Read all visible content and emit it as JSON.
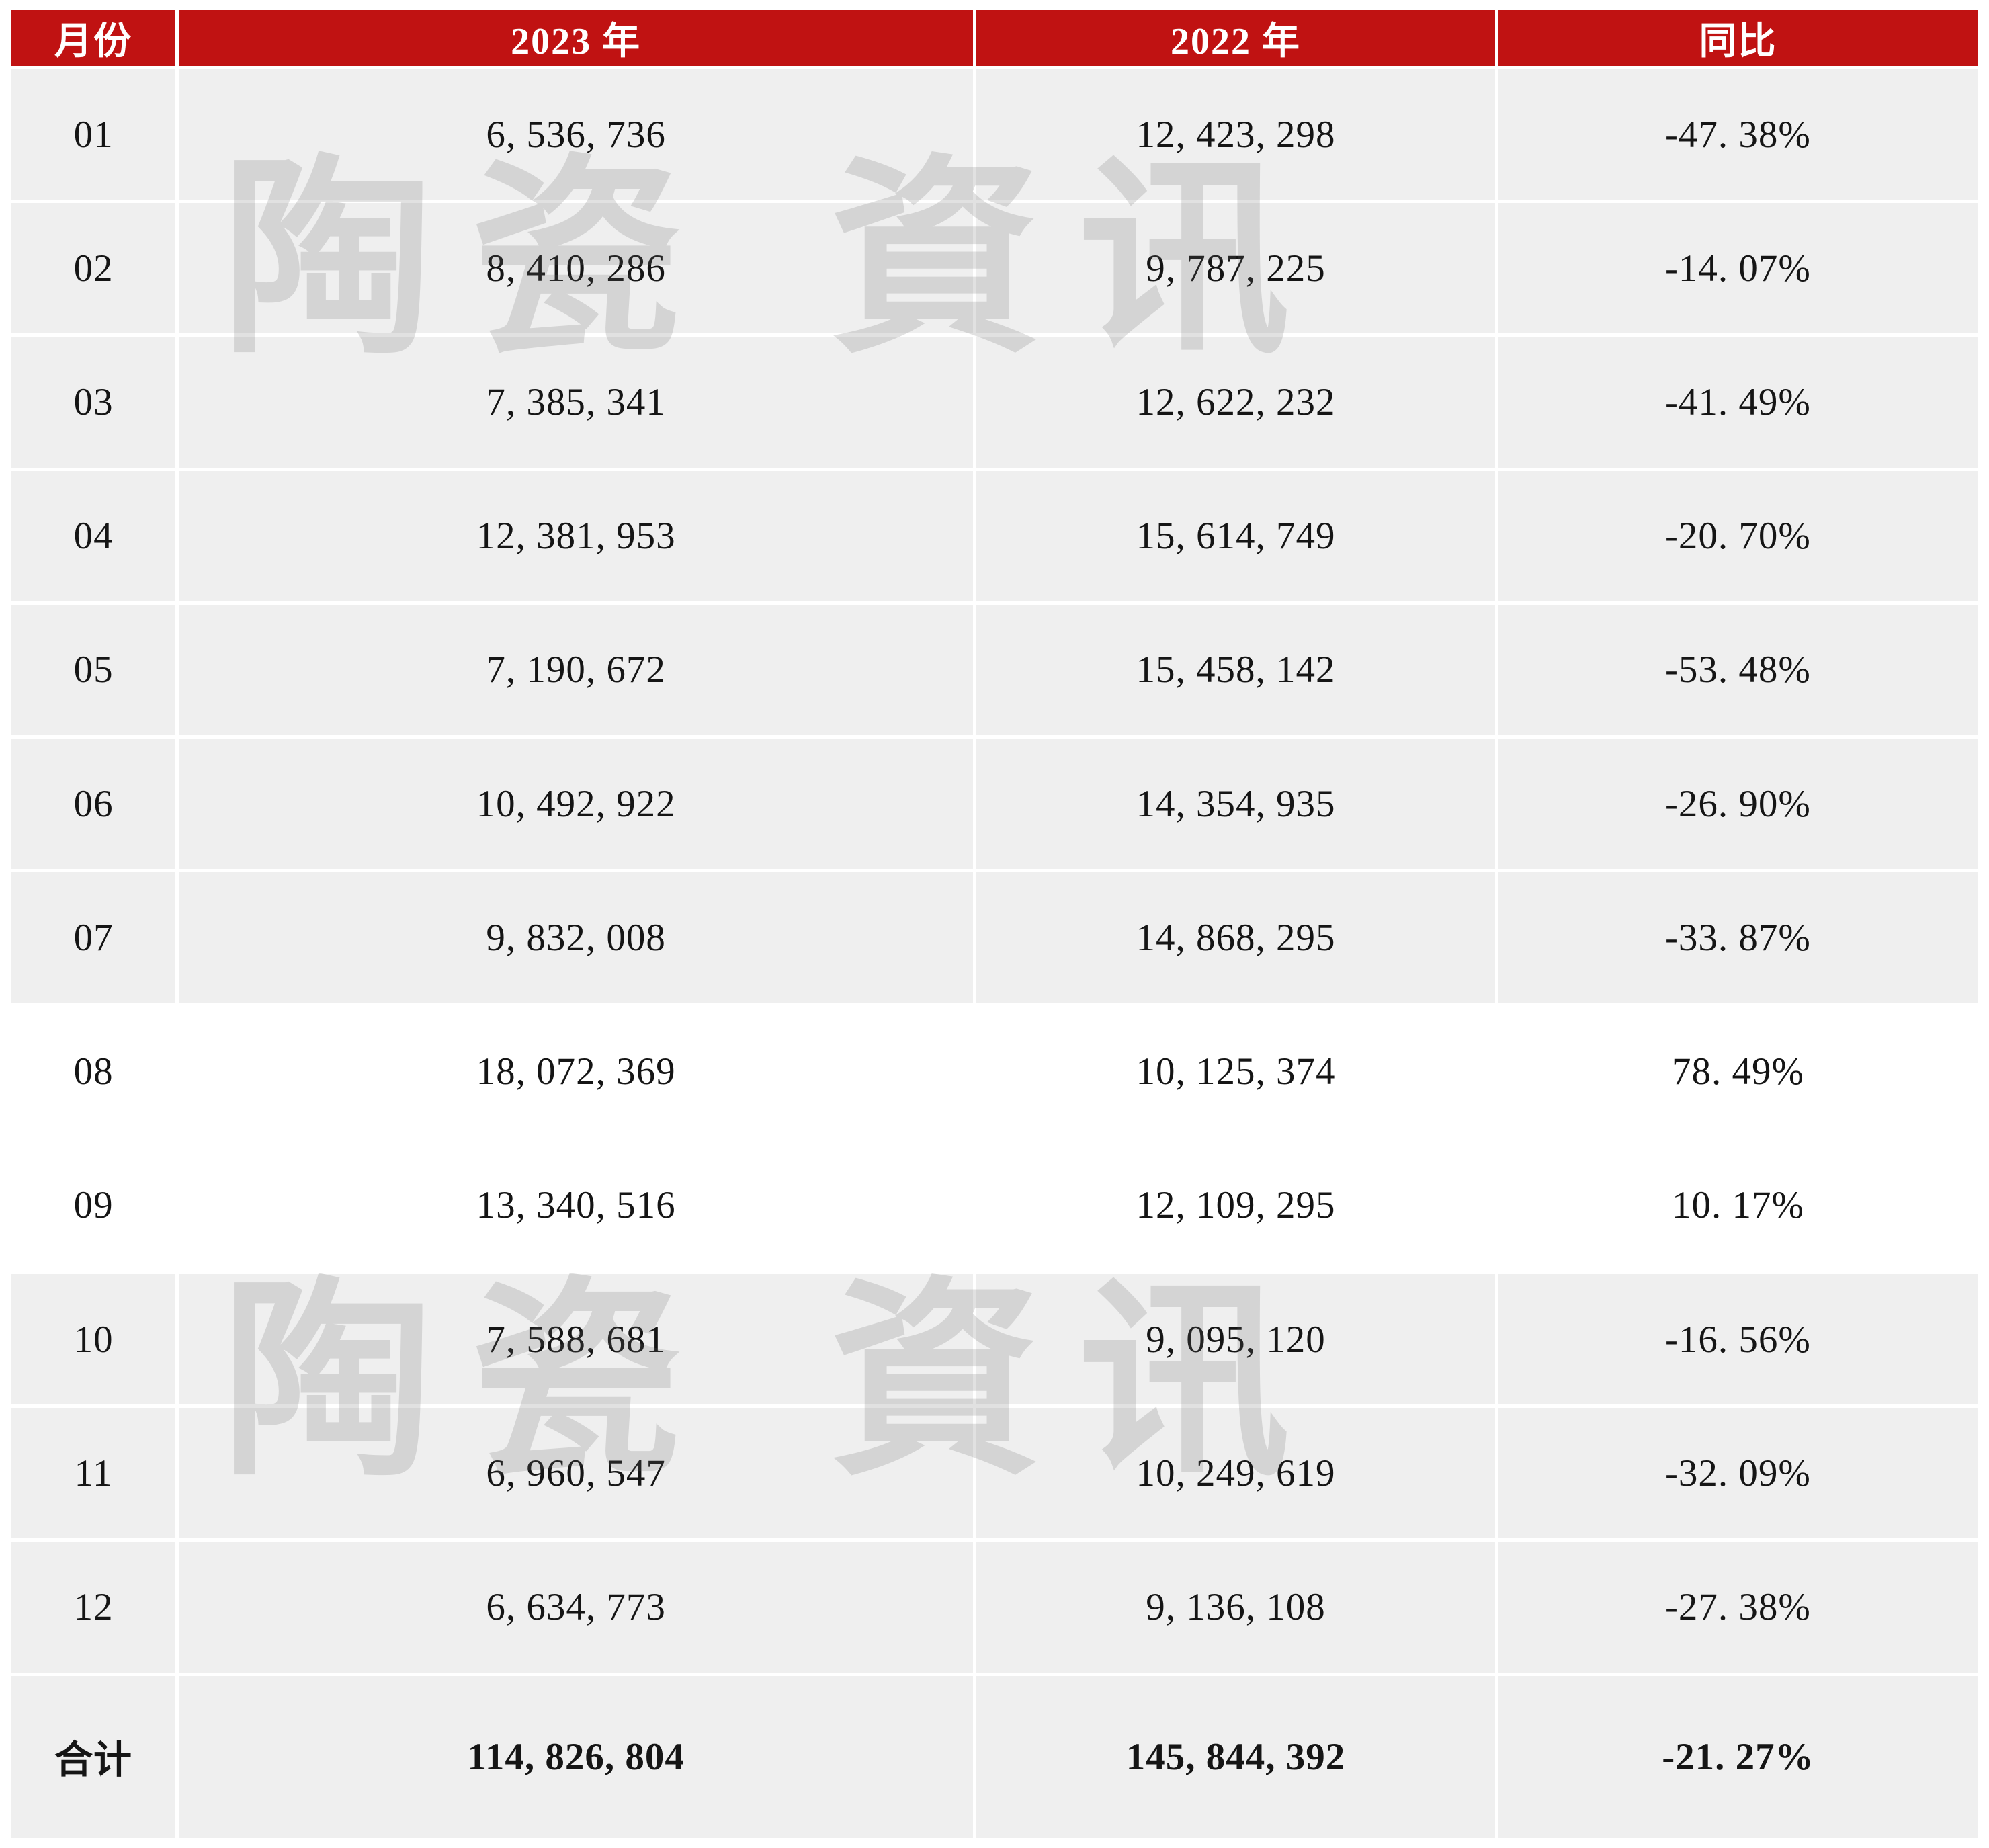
{
  "table": {
    "headers": [
      "月份",
      "2023 年",
      "2022 年",
      "同比"
    ],
    "rows": [
      {
        "month": "01",
        "y2023": "6, 536, 736",
        "y2022": "12, 423, 298",
        "yoy": "-47. 38%"
      },
      {
        "month": "02",
        "y2023": "8, 410, 286",
        "y2022": "9, 787, 225",
        "yoy": "-14. 07%"
      },
      {
        "month": "03",
        "y2023": "7, 385, 341",
        "y2022": "12, 622, 232",
        "yoy": "-41. 49%"
      },
      {
        "month": "04",
        "y2023": "12, 381, 953",
        "y2022": "15, 614, 749",
        "yoy": "-20. 70%"
      },
      {
        "month": "05",
        "y2023": "7, 190, 672",
        "y2022": "15, 458, 142",
        "yoy": "-53. 48%"
      },
      {
        "month": "06",
        "y2023": "10, 492, 922",
        "y2022": "14, 354, 935",
        "yoy": "-26. 90%"
      },
      {
        "month": "07",
        "y2023": "9, 832, 008",
        "y2022": "14, 868, 295",
        "yoy": "-33. 87%"
      },
      {
        "month": "08",
        "y2023": "18, 072, 369",
        "y2022": "10, 125, 374",
        "yoy": "78. 49%"
      },
      {
        "month": "09",
        "y2023": "13, 340, 516",
        "y2022": "12, 109, 295",
        "yoy": "10. 17%"
      },
      {
        "month": "10",
        "y2023": "7, 588, 681",
        "y2022": "9, 095, 120",
        "yoy": "-16. 56%"
      },
      {
        "month": "11",
        "y2023": "6, 960, 547",
        "y2022": "10, 249, 619",
        "yoy": "-32. 09%"
      },
      {
        "month": "12",
        "y2023": "6, 634, 773",
        "y2022": "9, 136, 108",
        "yoy": "-27. 38%"
      }
    ],
    "total": {
      "month": "合计",
      "y2023": "114, 826, 804",
      "y2022": "145, 844, 392",
      "yoy": "-21. 27%"
    }
  },
  "watermark": {
    "text": "陶瓷 資讯"
  },
  "colors": {
    "header_bg": "#c01212",
    "header_text": "#ffffff",
    "row_bg_gray": "#efefef",
    "row_bg_white": "#ffffff",
    "grid_line": "#ffffff"
  },
  "chart_data": {
    "type": "table",
    "title": "",
    "columns": [
      "月份",
      "2023 年",
      "2022 年",
      "同比"
    ],
    "rows": [
      [
        "01",
        6536736,
        12423298,
        -47.38
      ],
      [
        "02",
        8410286,
        9787225,
        -14.07
      ],
      [
        "03",
        7385341,
        12622232,
        -41.49
      ],
      [
        "04",
        12381953,
        15614749,
        -20.7
      ],
      [
        "05",
        7190672,
        15458142,
        -53.48
      ],
      [
        "06",
        10492922,
        14354935,
        -26.9
      ],
      [
        "07",
        9832008,
        14868295,
        -33.87
      ],
      [
        "08",
        18072369,
        10125374,
        78.49
      ],
      [
        "09",
        13340516,
        12109295,
        10.17
      ],
      [
        "10",
        7588681,
        9095120,
        -16.56
      ],
      [
        "11",
        6960547,
        10249619,
        -32.09
      ],
      [
        "12",
        6634773,
        9136108,
        -27.38
      ],
      [
        "合计",
        114826804,
        145844392,
        -21.27
      ]
    ],
    "yoy_unit": "%"
  }
}
